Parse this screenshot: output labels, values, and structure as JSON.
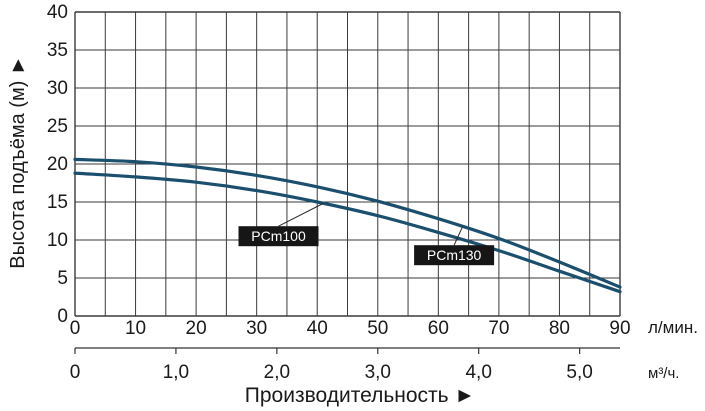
{
  "chart_data": {
    "type": "line",
    "title": "",
    "xlabel": "Производительность ►",
    "ylabel": "Высота подъёма (м) ►",
    "x_unit": "л/мин.",
    "x2_unit": "м³/ч.",
    "xlim": [
      0,
      90
    ],
    "ylim": [
      0,
      40
    ],
    "grid": true,
    "x_ticks": [
      "0",
      "10",
      "20",
      "30",
      "40",
      "50",
      "60",
      "70",
      "80",
      "90"
    ],
    "y_ticks": [
      "0",
      "5",
      "10",
      "15",
      "20",
      "25",
      "30",
      "35",
      "40"
    ],
    "x2_ticks": [
      "0",
      "1,0",
      "2,0",
      "3,0",
      "4,0",
      "5,0"
    ],
    "series": [
      {
        "name": "PCm100",
        "color": "#1b4f6e",
        "x": [
          0,
          10,
          20,
          30,
          40,
          50,
          60,
          70,
          80,
          90
        ],
        "y": [
          18.8,
          18.3,
          17.6,
          16.5,
          15.0,
          13.2,
          11.0,
          8.6,
          5.9,
          3.2
        ]
      },
      {
        "name": "PCm130",
        "color": "#1b4f6e",
        "x": [
          0,
          10,
          20,
          30,
          40,
          50,
          60,
          70,
          80,
          90
        ],
        "y": [
          20.6,
          20.3,
          19.6,
          18.5,
          17.0,
          15.1,
          12.8,
          10.2,
          7.1,
          3.8
        ]
      }
    ]
  }
}
